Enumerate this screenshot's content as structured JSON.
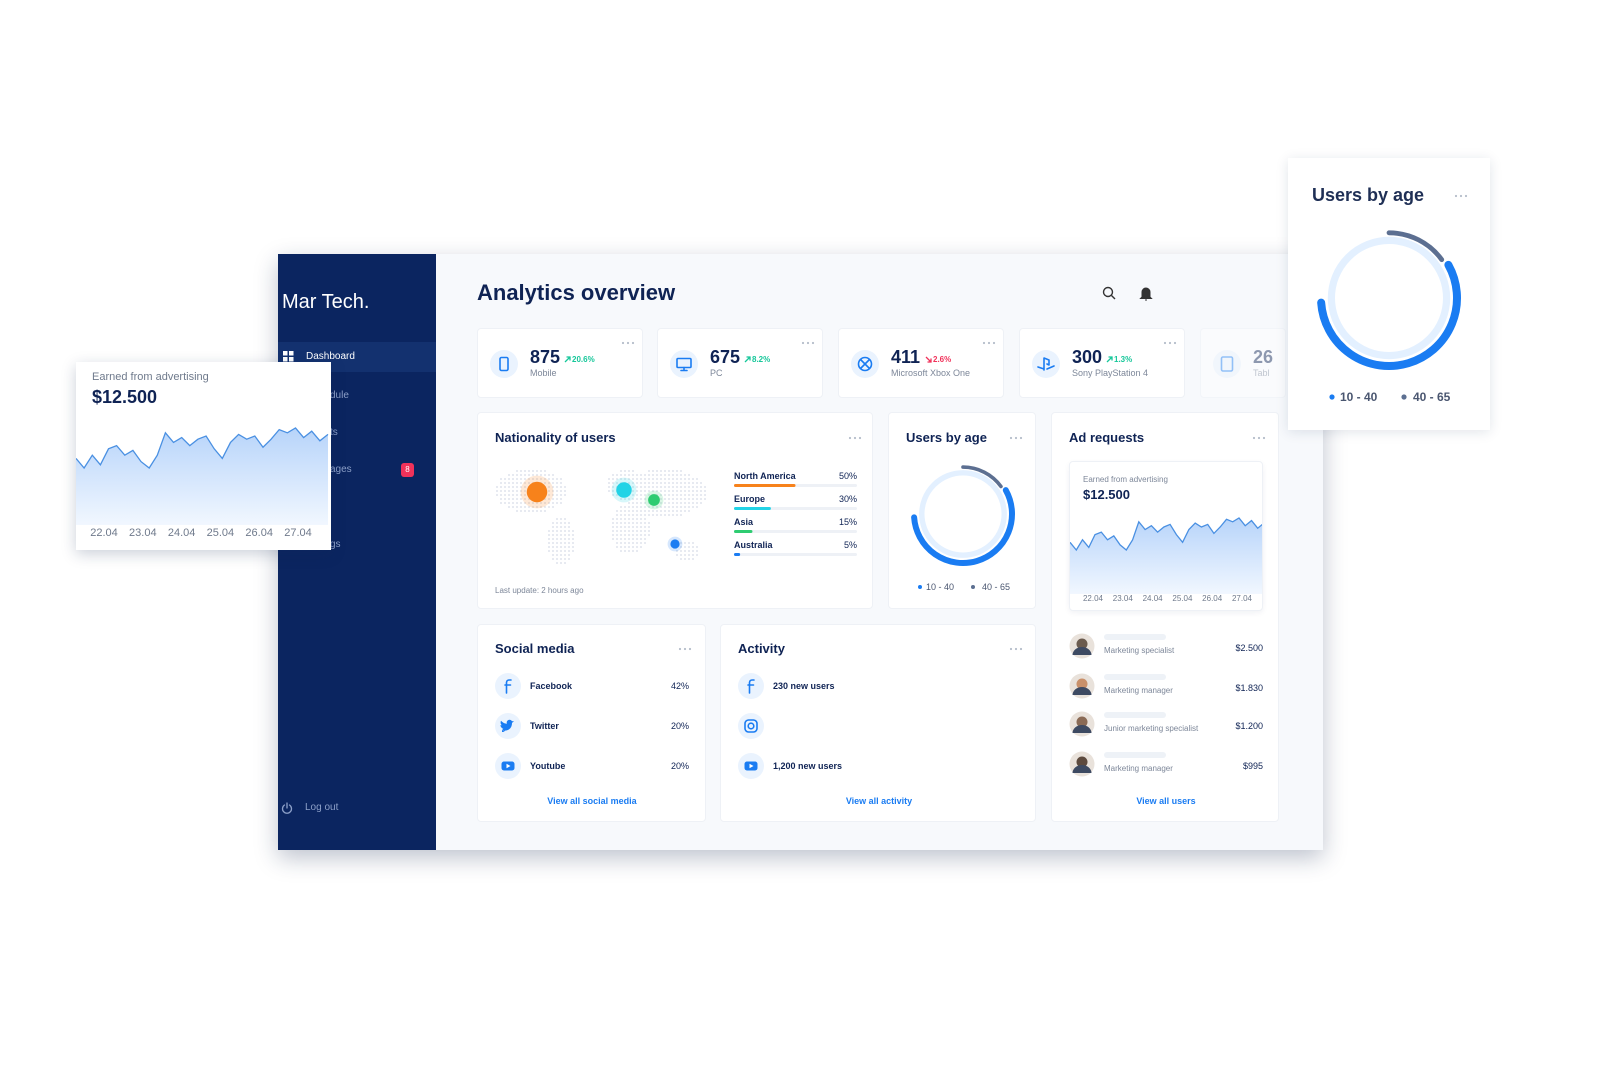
{
  "sidebar": {
    "brand": "Mar Tech.",
    "nav": [
      "Dashboard",
      "dule",
      "ts",
      "ages",
      "gs"
    ],
    "badge": "8",
    "logout": "Log out"
  },
  "header": {
    "title": "Analytics overview"
  },
  "stats": [
    {
      "value": "875",
      "change": "20.6%",
      "trend": "up",
      "label": "Mobile",
      "icon": "mobile"
    },
    {
      "value": "675",
      "change": "8.2%",
      "trend": "up",
      "label": "PC",
      "icon": "pc"
    },
    {
      "value": "411",
      "change": "2.6%",
      "trend": "down",
      "label": "Microsoft Xbox One",
      "icon": "xbox"
    },
    {
      "value": "300",
      "change": "1.3%",
      "trend": "up",
      "label": "Sony PlayStation 4",
      "icon": "playstation"
    },
    {
      "value": "26",
      "label": "Tabl",
      "icon": "tablet"
    }
  ],
  "nationality": {
    "title": "Nationality of users",
    "regions": [
      {
        "name": "North America",
        "share": {
          "value": 50,
          "label": "50%"
        },
        "color": "#f7821b"
      },
      {
        "name": "Europe",
        "share": {
          "value": 30,
          "label": "30%"
        },
        "color": "#22d3e6"
      },
      {
        "name": "Asia",
        "share": {
          "value": 15,
          "label": "15%"
        },
        "color": "#2ecc71"
      },
      {
        "name": "Australia",
        "share": {
          "value": 5,
          "label": "5%"
        },
        "color": "#1a7cf2"
      }
    ],
    "footer": "Last update: 2 hours ago"
  },
  "age": {
    "title": "Users by age",
    "series": [
      {
        "name": "10 - 40",
        "color": "#1a7cf2",
        "value": 57
      },
      {
        "name": "40 - 65",
        "color": "#5c6f91",
        "value": 15
      }
    ]
  },
  "ads": {
    "title": "Ad requests",
    "caption": "Earned from advertising",
    "amount": "$12.500",
    "x_labels": [
      "22.04",
      "23.04",
      "24.04",
      "25.04",
      "26.04",
      "27.04"
    ],
    "values": [
      42,
      36,
      44,
      38,
      48,
      50,
      44,
      47,
      40,
      36,
      44,
      58,
      52,
      55,
      50,
      54,
      56,
      48,
      42,
      52,
      57,
      54,
      56,
      49,
      54,
      60,
      58,
      61,
      55,
      59,
      53,
      57
    ],
    "color": "#4a90e2"
  },
  "users": {
    "rows": [
      {
        "role": "Marketing specialist",
        "amount": "$2.500"
      },
      {
        "role": "Marketing manager",
        "amount": "$1.830"
      },
      {
        "role": "Junior marketing specialist",
        "amount": "$1.200"
      },
      {
        "role": "Marketing manager",
        "amount": "$995"
      }
    ],
    "link": "View all users"
  },
  "social": {
    "title": "Social media",
    "rows": [
      {
        "name": "Facebook",
        "share": "42%",
        "icon": "facebook"
      },
      {
        "name": "Twitter",
        "share": "20%",
        "icon": "twitter"
      },
      {
        "name": "Youtube",
        "share": "20%",
        "icon": "youtube"
      }
    ],
    "link": "View all social media"
  },
  "activity": {
    "title": "Activity",
    "rows": [
      {
        "icon": "facebook",
        "text": "230 new users"
      },
      {
        "icon": "instagram"
      },
      {
        "icon": "youtube",
        "text": "1,200 new users"
      }
    ],
    "link": "View all activity"
  }
}
